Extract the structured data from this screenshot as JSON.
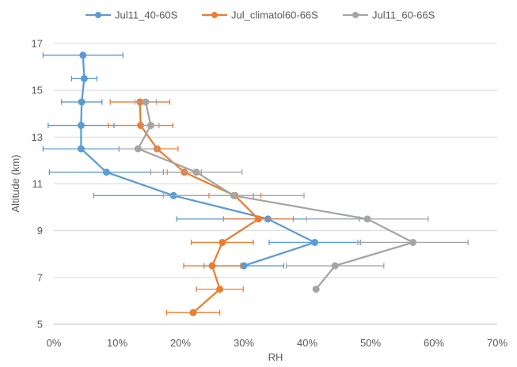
{
  "chart_data": {
    "type": "scatter",
    "title": "",
    "xlabel": "RH",
    "ylabel": "Altitude (km)",
    "xlim": [
      0,
      0.7
    ],
    "ylim": [
      5,
      17
    ],
    "x_ticks": [
      0,
      0.1,
      0.2,
      0.3,
      0.4,
      0.5,
      0.6,
      0.7
    ],
    "x_tick_labels": [
      "0%",
      "10%",
      "20%",
      "30%",
      "40%",
      "50%",
      "60%",
      "70%"
    ],
    "y_ticks": [
      5,
      7,
      9,
      11,
      13,
      15,
      17
    ],
    "y_tick_labels": [
      "5",
      "7",
      "9",
      "11",
      "13",
      "15",
      "17"
    ],
    "grid": "horizontal",
    "legend_position": "top",
    "series": [
      {
        "name": "Jul11_40-60S",
        "color": "#5b9bd5",
        "points": [
          {
            "x": 0.046,
            "y": 16.5,
            "err": 0.063
          },
          {
            "x": 0.048,
            "y": 15.5,
            "err": 0.02
          },
          {
            "x": 0.044,
            "y": 14.5,
            "err": 0.032
          },
          {
            "x": 0.043,
            "y": 13.5,
            "err": 0.052
          },
          {
            "x": 0.043,
            "y": 12.5,
            "err": 0.06
          },
          {
            "x": 0.083,
            "y": 11.5,
            "err": 0.09
          },
          {
            "x": 0.189,
            "y": 10.5,
            "err": 0.126
          },
          {
            "x": 0.338,
            "y": 9.5,
            "err": 0.144
          },
          {
            "x": 0.412,
            "y": 8.5,
            "err": 0.072
          },
          {
            "x": 0.3,
            "y": 7.5,
            "err": 0.063
          }
        ]
      },
      {
        "name": "Jul_climatol60-66S",
        "color": "#ed7d31",
        "points": [
          {
            "x": 0.136,
            "y": 14.5,
            "err": 0.047
          },
          {
            "x": 0.137,
            "y": 13.5,
            "err": 0.051
          },
          {
            "x": 0.163,
            "y": 12.5,
            "err": 0.033
          },
          {
            "x": 0.206,
            "y": 11.5,
            "err": 0.027
          },
          {
            "x": 0.286,
            "y": 10.5,
            "err": 0.041
          },
          {
            "x": 0.323,
            "y": 9.5,
            "err": 0.055
          },
          {
            "x": 0.266,
            "y": 8.5,
            "err": 0.049
          },
          {
            "x": 0.25,
            "y": 7.5,
            "err": 0.045
          },
          {
            "x": 0.262,
            "y": 6.5,
            "err": 0.037
          },
          {
            "x": 0.22,
            "y": 5.5,
            "err": 0.042
          }
        ]
      },
      {
        "name": "Jul11_60-66S",
        "color": "#a5a5a5",
        "points": [
          {
            "x": 0.145,
            "y": 14.5,
            "err": 0.017
          },
          {
            "x": 0.153,
            "y": 13.5,
            "err": 0.013
          },
          {
            "x": 0.133,
            "y": 12.5,
            "err": 0.03
          },
          {
            "x": 0.225,
            "y": 11.5,
            "err": 0.072
          },
          {
            "x": 0.284,
            "y": 10.5,
            "err": 0.111
          },
          {
            "x": 0.495,
            "y": 9.5,
            "err": 0.096
          },
          {
            "x": 0.567,
            "y": 8.5,
            "err": 0.087
          },
          {
            "x": 0.444,
            "y": 7.5,
            "err": 0.077
          },
          {
            "x": 0.414,
            "y": 6.5,
            "err": 0
          }
        ]
      }
    ]
  }
}
